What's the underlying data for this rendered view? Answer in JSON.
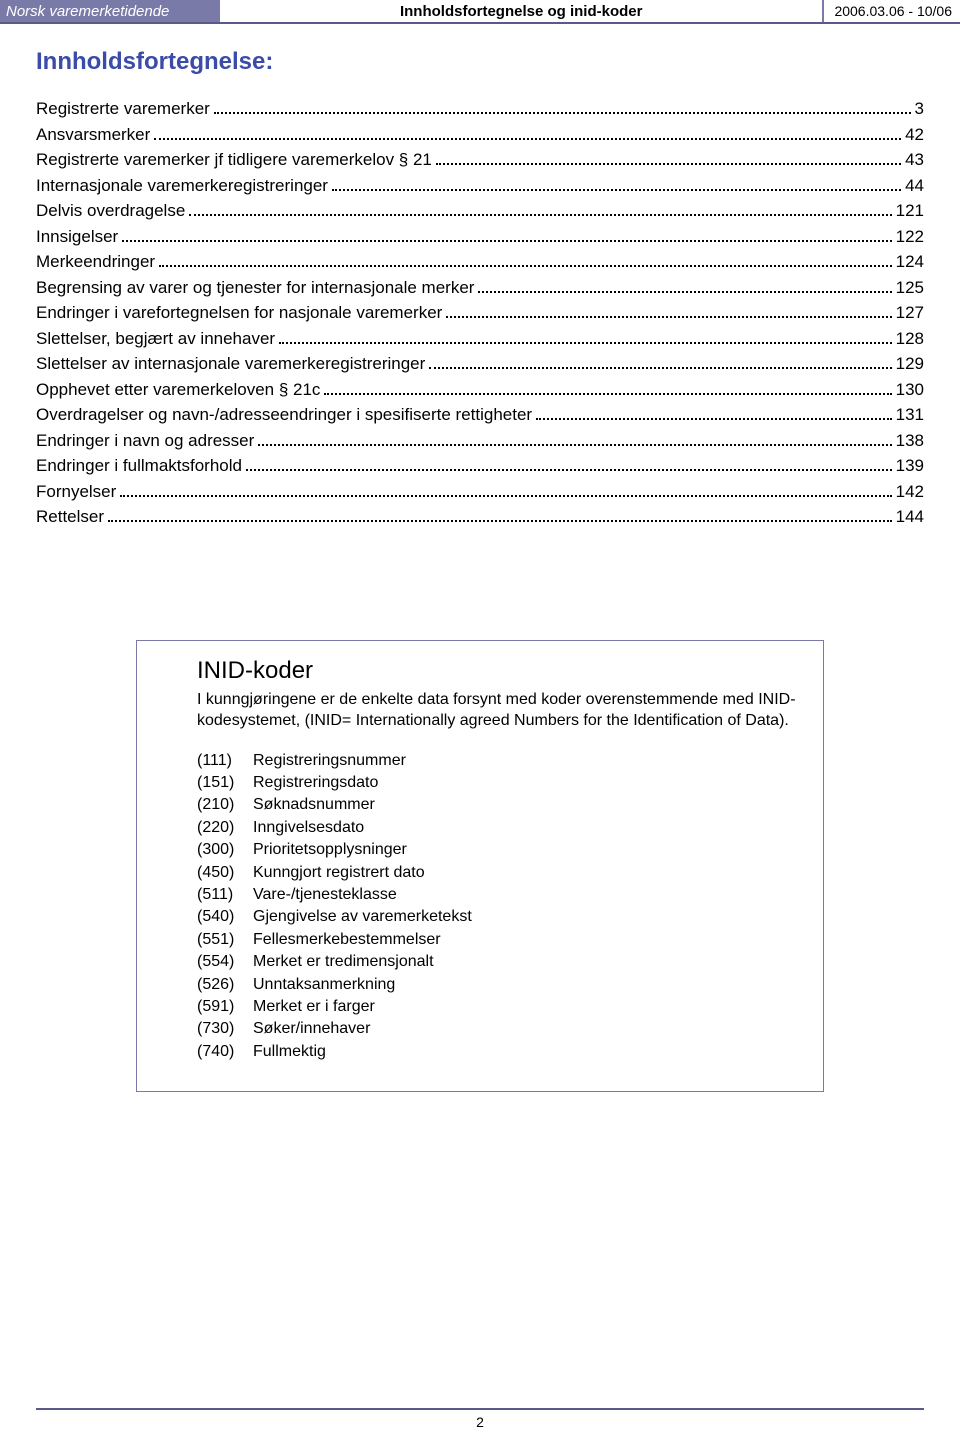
{
  "header": {
    "logo_text": "Norsk varemerketidende",
    "center_text": "Innholdsfortegnelse og inid-koder",
    "right_text": "2006.03.06 - 10/06"
  },
  "title": "Innholdsfortegnelse:",
  "toc": [
    {
      "label": "Registrerte varemerker",
      "page": "3"
    },
    {
      "label": "Ansvarsmerker",
      "page": "42"
    },
    {
      "label": "Registrerte varemerker jf tidligere varemerkelov § 21",
      "page": "43"
    },
    {
      "label": "Internasjonale varemerkeregistreringer",
      "page": "44"
    },
    {
      "label": "Delvis overdragelse",
      "page": "121"
    },
    {
      "label": "Innsigelser",
      "page": "122"
    },
    {
      "label": "Merkeendringer",
      "page": "124"
    },
    {
      "label": "Begrensing av varer og tjenester for internasjonale merker",
      "page": "125"
    },
    {
      "label": "Endringer i varefortegnelsen for nasjonale varemerker",
      "page": "127"
    },
    {
      "label": "Slettelser, begjært av innehaver",
      "page": "128"
    },
    {
      "label": "Slettelser av internasjonale varemerkeregistreringer",
      "page": "129"
    },
    {
      "label": "Opphevet etter varemerkeloven § 21c",
      "page": "130"
    },
    {
      "label": "Overdragelser og navn-/adresseendringer i spesifiserte rettigheter",
      "page": "131"
    },
    {
      "label": "Endringer i navn og adresser",
      "page": "138"
    },
    {
      "label": "Endringer i fullmaktsforhold",
      "page": "139"
    },
    {
      "label": "Fornyelser",
      "page": "142"
    },
    {
      "label": "Rettelser",
      "page": "144"
    }
  ],
  "inid": {
    "title": "INID-koder",
    "intro": "I kunngjøringene er de enkelte data forsynt med koder overenstemmende med INID-kodesystemet, (INID= Internationally agreed Numbers for the Identification of Data).",
    "codes": [
      {
        "num": "(111)",
        "label": "Registreringsnummer"
      },
      {
        "num": "(151)",
        "label": "Registreringsdato"
      },
      {
        "num": "(210)",
        "label": "Søknadsnummer"
      },
      {
        "num": "(220)",
        "label": "Inngivelsesdato"
      },
      {
        "num": "(300)",
        "label": "Prioritetsopplysninger"
      },
      {
        "num": "(450)",
        "label": "Kunngjort registrert dato"
      },
      {
        "num": "(511)",
        "label": "Vare-/tjenesteklasse"
      },
      {
        "num": "(540)",
        "label": "Gjengivelse av varemerketekst"
      },
      {
        "num": "(551)",
        "label": "Fellesmerkebestemmelser"
      },
      {
        "num": "(554)",
        "label": "Merket er tredimensjonalt"
      },
      {
        "num": "(526)",
        "label": "Unntaksanmerkning"
      },
      {
        "num": "(591)",
        "label": "Merket er i farger"
      },
      {
        "num": "(730)",
        "label": "Søker/innehaver"
      },
      {
        "num": "(740)",
        "label": "Fullmektig"
      }
    ]
  },
  "footer": {
    "page_number": "2"
  }
}
